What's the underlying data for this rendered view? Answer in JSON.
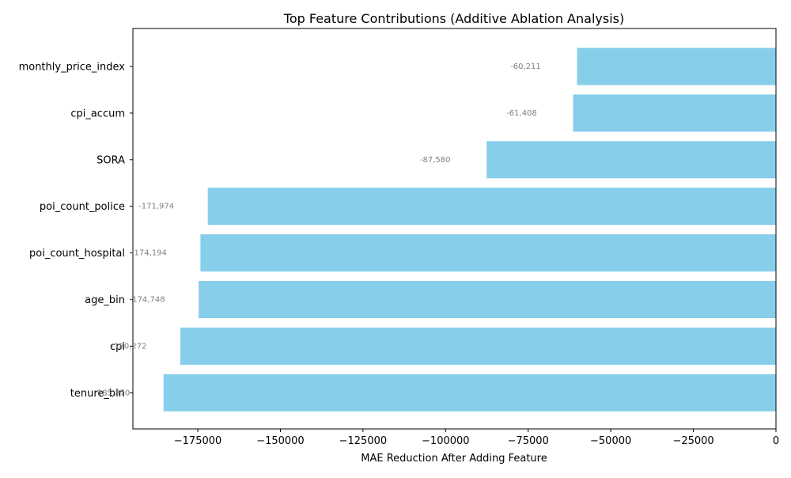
{
  "chart_data": {
    "type": "bar",
    "orientation": "horizontal",
    "title": "Top Feature Contributions (Additive Ablation Analysis)",
    "xlabel": "MAE Reduction After Adding Feature",
    "ylabel": "",
    "categories": [
      "monthly_price_index",
      "cpi_accum",
      "SORA",
      "poi_count_police",
      "poi_count_hospital",
      "age_bin",
      "cpi",
      "tenure_bin"
    ],
    "values": [
      -60211,
      -61408,
      -87580,
      -171974,
      -174194,
      -174748,
      -180272,
      -185370
    ],
    "value_labels": [
      "-60,211",
      "-61,408",
      "-87,580",
      "-171,974",
      "-174,194",
      "-174,748",
      "-180,272",
      "-185,370"
    ],
    "xlim": [
      -194639,
      0
    ],
    "xticks": [
      -175000,
      -150000,
      -125000,
      -100000,
      -75000,
      -50000,
      -25000,
      0
    ],
    "xtick_labels": [
      "−175000",
      "−150000",
      "−125000",
      "−100000",
      "−75000",
      "−50000",
      "−25000",
      "0"
    ],
    "grid": false,
    "bar_color": "#87ceeb",
    "label_color": "#808080"
  }
}
